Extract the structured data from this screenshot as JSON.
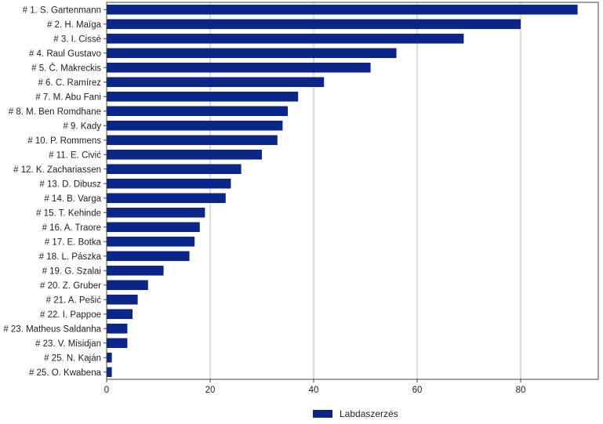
{
  "chart_data": {
    "type": "bar",
    "orientation": "horizontal",
    "categories": [
      "# 1.  S. Gartenmann",
      "# 2.  H. Maïga",
      "# 3.  I. Cissé",
      "# 4.  Raul Gustavo",
      "# 5.  Č. Makreckis",
      "# 6.  C. Ramírez",
      "# 7.  M. Abu Fani",
      "# 8.  M. Ben Romdhane",
      "# 9.  Kady",
      "# 10.  P. Rommens",
      "# 11.  E. Civić",
      "# 12.  K. Zachariassen",
      "# 13.  D. Dibusz",
      "# 14.  B. Varga",
      "# 15.  T. Kehinde",
      "# 16.  A. Traore",
      "# 17.  E. Botka",
      "# 18.  L. Pászka",
      "# 19.  G. Szalai",
      "# 20.  Z. Gruber",
      "# 21.  A. Pešić",
      "# 22.  I. Pappoe",
      "# 23.  Matheus Saldanha",
      "# 23.  V. Misidjan",
      "# 25.  N. Kaján",
      "# 25.  O. Kwabena"
    ],
    "series": [
      {
        "name": "Labdaszerzés",
        "color": "#0c2588",
        "values": [
          91,
          80,
          69,
          56,
          51,
          42,
          37,
          35,
          34,
          33,
          30,
          26,
          24,
          23,
          19,
          18,
          17,
          16,
          11,
          8,
          6,
          5,
          4,
          4,
          1,
          1
        ]
      }
    ],
    "xlim": [
      0,
      95
    ],
    "xticks": [
      0,
      20,
      40,
      60,
      80
    ],
    "grid": "vertical",
    "legend_position": "bottom-center",
    "title": "",
    "xlabel": "",
    "ylabel": ""
  }
}
